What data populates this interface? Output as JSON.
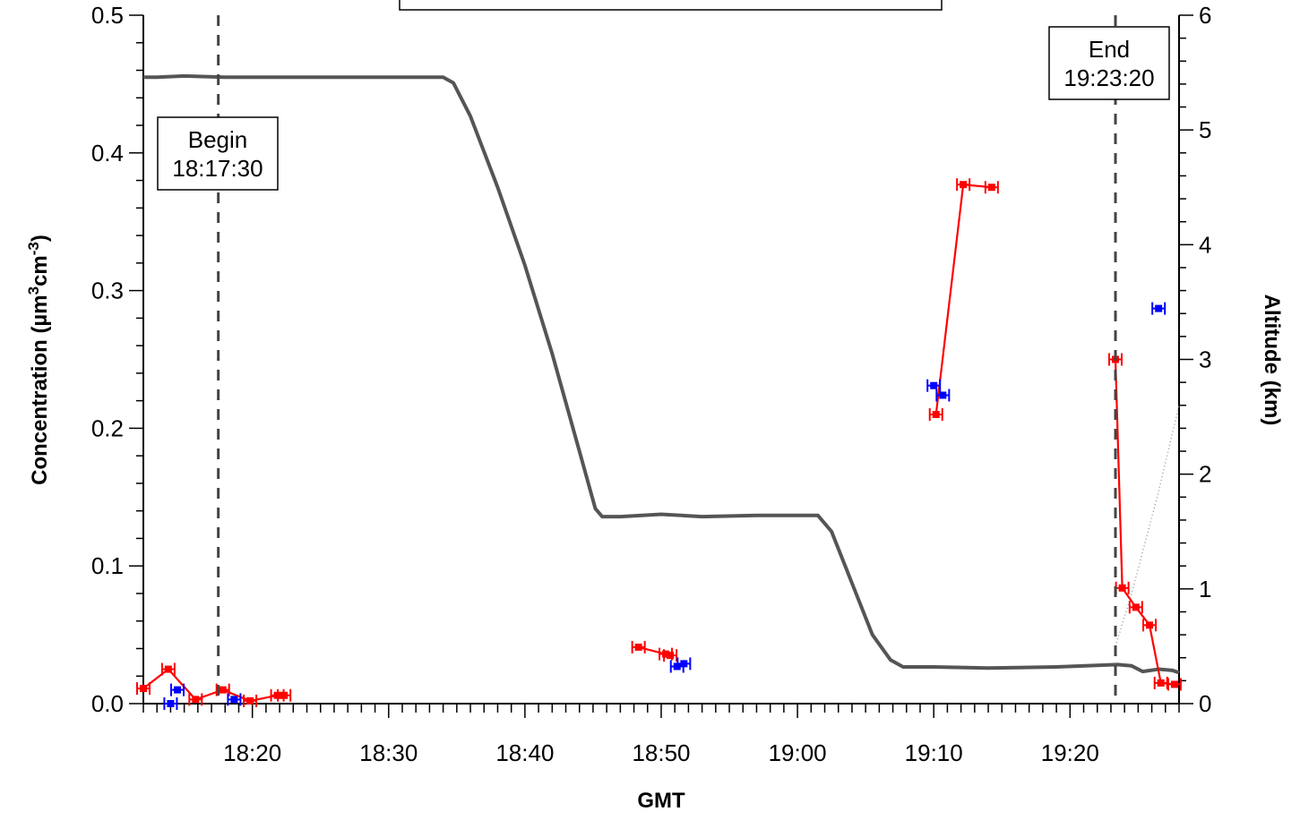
{
  "chart_data": {
    "type": "line",
    "xlabel": "GMT",
    "ylabel_left": "Concentration  (µm³cm⁻³)",
    "ylabel_right": "Altitude  (km)",
    "xlim": [
      "18:12",
      "19:28"
    ],
    "ylim_left": [
      0,
      0.5
    ],
    "ylim_right": [
      0,
      6
    ],
    "x_ticks": [
      "18:20",
      "18:30",
      "18:40",
      "18:50",
      "19:00",
      "19:10",
      "19:20"
    ],
    "y_left_ticks": [
      "0.0",
      "0.1",
      "0.2",
      "0.3",
      "0.4",
      "0.5"
    ],
    "y_right_ticks": [
      "0",
      "1",
      "2",
      "3",
      "4",
      "5",
      "6"
    ],
    "grid": false,
    "annotations": [
      {
        "time": "18:17:30",
        "lines": [
          "Begin",
          "18:17:30"
        ]
      },
      {
        "time": "19:23:20",
        "lines": [
          "End",
          "19:23:20"
        ]
      }
    ],
    "series": [
      {
        "axis": "right",
        "color": "#555555",
        "style": "line",
        "points": [
          [
            "18:12:00",
            5.46
          ],
          [
            "18:13:00",
            5.46
          ],
          [
            "18:15:00",
            5.47
          ],
          [
            "18:18:00",
            5.46
          ],
          [
            "18:22:00",
            5.46
          ],
          [
            "18:27:00",
            5.46
          ],
          [
            "18:31:00",
            5.46
          ],
          [
            "18:34:00",
            5.46
          ],
          [
            "18:34:45",
            5.41
          ],
          [
            "18:36:00",
            5.12
          ],
          [
            "18:38:00",
            4.5
          ],
          [
            "18:40:00",
            3.82
          ],
          [
            "18:42:00",
            3.05
          ],
          [
            "18:44:00",
            2.2
          ],
          [
            "18:45:10",
            1.7
          ],
          [
            "18:45:40",
            1.63
          ],
          [
            "18:47:00",
            1.63
          ],
          [
            "18:50:00",
            1.65
          ],
          [
            "18:53:00",
            1.63
          ],
          [
            "18:57:00",
            1.64
          ],
          [
            "19:01:30",
            1.64
          ],
          [
            "19:02:30",
            1.5
          ],
          [
            "19:04:00",
            1.05
          ],
          [
            "19:05:30",
            0.6
          ],
          [
            "19:06:50",
            0.38
          ],
          [
            "19:07:45",
            0.32
          ],
          [
            "19:10:00",
            0.32
          ],
          [
            "19:14:00",
            0.31
          ],
          [
            "19:19:00",
            0.32
          ],
          [
            "19:23:30",
            0.34
          ],
          [
            "19:24:30",
            0.33
          ],
          [
            "19:25:20",
            0.28
          ],
          [
            "19:26:30",
            0.3
          ],
          [
            "19:27:30",
            0.29
          ],
          [
            "19:28:00",
            0.27
          ]
        ]
      },
      {
        "axis": "right",
        "color": "#9a9a9a",
        "style": "dotted",
        "points": [
          [
            "19:23:20",
            0.5
          ],
          [
            "19:24:30",
            0.95
          ],
          [
            "19:25:30",
            1.4
          ],
          [
            "19:26:30",
            1.85
          ],
          [
            "19:27:30",
            2.35
          ],
          [
            "19:28:00",
            2.6
          ]
        ]
      },
      {
        "axis": "left",
        "color": "#ff0000",
        "style": "line-markers",
        "points": [
          [
            "18:12:00",
            0.011
          ],
          [
            "18:13:50",
            0.025
          ],
          [
            "18:15:50",
            0.003
          ],
          [
            "18:17:50",
            0.01
          ],
          [
            "18:19:50",
            0.002
          ],
          [
            "18:21:50",
            0.006
          ],
          [
            "18:22:20",
            0.006
          ]
        ]
      },
      {
        "axis": "left",
        "color": "#ff0000",
        "style": "line-markers",
        "points": [
          [
            "18:48:20",
            0.041
          ],
          [
            "18:50:20",
            0.036
          ],
          [
            "18:50:40",
            0.035
          ]
        ]
      },
      {
        "axis": "left",
        "color": "#ff0000",
        "style": "line-markers",
        "points": [
          [
            "19:10:10",
            0.21
          ],
          [
            "19:12:10",
            0.377
          ],
          [
            "19:14:15",
            0.375
          ]
        ]
      },
      {
        "axis": "left",
        "color": "#ff0000",
        "style": "line-markers",
        "points": [
          [
            "19:23:20",
            0.25
          ],
          [
            "19:23:50",
            0.084
          ],
          [
            "19:24:50",
            0.07
          ],
          [
            "19:25:50",
            0.057
          ],
          [
            "19:26:40",
            0.015
          ],
          [
            "19:27:40",
            0.014
          ]
        ]
      },
      {
        "axis": "left",
        "color": "#0000ff",
        "style": "markers",
        "points": [
          [
            "18:14:00",
            0.0
          ],
          [
            "18:14:30",
            0.01
          ],
          [
            "18:18:40",
            0.003
          ],
          [
            "18:51:10",
            0.027
          ],
          [
            "18:51:40",
            0.029
          ],
          [
            "19:10:00",
            0.231
          ],
          [
            "19:10:40",
            0.224
          ],
          [
            "19:26:30",
            0.287
          ]
        ]
      }
    ]
  }
}
